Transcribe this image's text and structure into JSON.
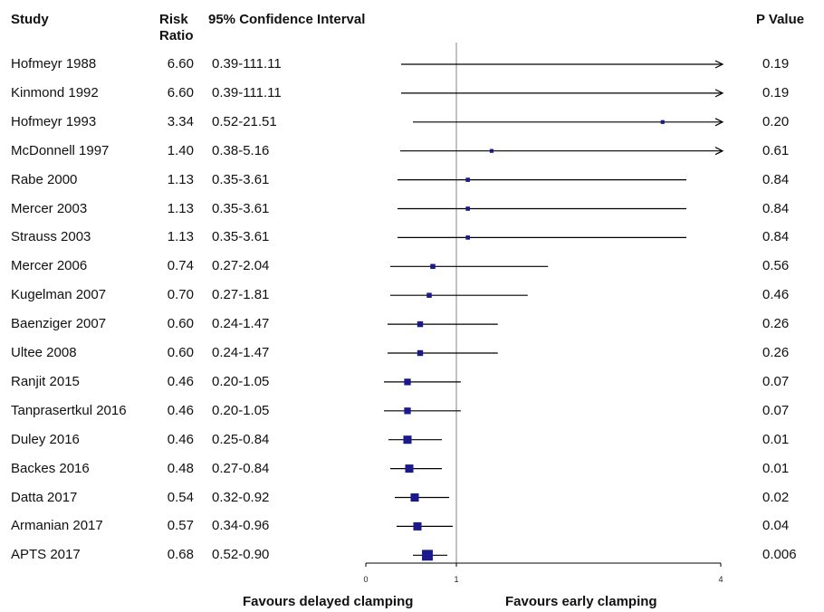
{
  "chart_data": {
    "type": "forest",
    "headers": {
      "study": "Study",
      "risk_ratio_line1": "Risk",
      "risk_ratio_line2": "Ratio",
      "ci": "95% Confidence Interval",
      "p_value": "P Value"
    },
    "rows": [
      {
        "study": "Hofmeyr 1988",
        "rr": "6.60",
        "ci": "0.39-111.11",
        "p": "0.19",
        "rr_value": 6.6,
        "lo": 0.39,
        "hi": 111.11,
        "weight": 0
      },
      {
        "study": "Kinmond 1992",
        "rr": "6.60",
        "ci": "0.39-111.11",
        "p": "0.19",
        "rr_value": 6.6,
        "lo": 0.39,
        "hi": 111.11,
        "weight": 0
      },
      {
        "study": "Hofmeyr 1993",
        "rr": "3.34",
        "ci": "0.52-21.51",
        "p": "0.20",
        "rr_value": 3.34,
        "lo": 0.52,
        "hi": 21.51,
        "weight": 1
      },
      {
        "study": "McDonnell 1997",
        "rr": "1.40",
        "ci": "0.38-5.16",
        "p": "0.61",
        "rr_value": 1.4,
        "lo": 0.38,
        "hi": 5.16,
        "weight": 1
      },
      {
        "study": "Rabe 2000",
        "rr": "1.13",
        "ci": "0.35-3.61",
        "p": "0.84",
        "rr_value": 1.13,
        "lo": 0.35,
        "hi": 3.61,
        "weight": 1.2
      },
      {
        "study": "Mercer 2003",
        "rr": "1.13",
        "ci": "0.35-3.61",
        "p": "0.84",
        "rr_value": 1.13,
        "lo": 0.35,
        "hi": 3.61,
        "weight": 1.2
      },
      {
        "study": "Strauss 2003",
        "rr": "1.13",
        "ci": "0.35-3.61",
        "p": "0.84",
        "rr_value": 1.13,
        "lo": 0.35,
        "hi": 3.61,
        "weight": 1.2
      },
      {
        "study": "Mercer 2006",
        "rr": "0.74",
        "ci": "0.27-2.04",
        "p": "0.56",
        "rr_value": 0.74,
        "lo": 0.27,
        "hi": 2.04,
        "weight": 1.6
      },
      {
        "study": "Kugelman 2007",
        "rr": "0.70",
        "ci": "0.27-1.81",
        "p": "0.46",
        "rr_value": 0.7,
        "lo": 0.27,
        "hi": 1.81,
        "weight": 1.6
      },
      {
        "study": "Baenziger 2007",
        "rr": "0.60",
        "ci": "0.24-1.47",
        "p": "0.26",
        "rr_value": 0.6,
        "lo": 0.24,
        "hi": 1.47,
        "weight": 2
      },
      {
        "study": "Ultee 2008",
        "rr": "0.60",
        "ci": "0.24-1.47",
        "p": "0.26",
        "rr_value": 0.6,
        "lo": 0.24,
        "hi": 1.47,
        "weight": 2
      },
      {
        "study": "Ranjit 2015",
        "rr": "0.46",
        "ci": "0.20-1.05",
        "p": "0.07",
        "rr_value": 0.46,
        "lo": 0.2,
        "hi": 1.05,
        "weight": 2.4
      },
      {
        "study": "Tanprasertkul 2016",
        "rr": "0.46",
        "ci": "0.20-1.05",
        "p": "0.07",
        "rr_value": 0.46,
        "lo": 0.2,
        "hi": 1.05,
        "weight": 2.4
      },
      {
        "study": "Duley 2016",
        "rr": "0.46",
        "ci": "0.25-0.84",
        "p": "0.01",
        "rr_value": 0.46,
        "lo": 0.25,
        "hi": 0.84,
        "weight": 3.2
      },
      {
        "study": "Backes 2016",
        "rr": "0.48",
        "ci": "0.27-0.84",
        "p": "0.01",
        "rr_value": 0.48,
        "lo": 0.27,
        "hi": 0.84,
        "weight": 3.2
      },
      {
        "study": "Datta 2017",
        "rr": "0.54",
        "ci": "0.32-0.92",
        "p": "0.02",
        "rr_value": 0.54,
        "lo": 0.32,
        "hi": 0.92,
        "weight": 3.2
      },
      {
        "study": "Armanian 2017",
        "rr": "0.57",
        "ci": "0.34-0.96",
        "p": "0.04",
        "rr_value": 0.57,
        "lo": 0.34,
        "hi": 0.96,
        "weight": 3.2
      },
      {
        "study": "APTS 2017",
        "rr": "0.68",
        "ci": "0.52-0.90",
        "p": "0.006",
        "rr_value": 0.68,
        "lo": 0.52,
        "hi": 0.9,
        "weight": 4.5
      }
    ],
    "x_axis": {
      "range": [
        0,
        4
      ],
      "ticks": [
        "0",
        "1",
        "4"
      ],
      "reference_line": 1
    },
    "favours_left": "Favours delayed clamping",
    "favours_right": "Favours early clamping",
    "marker_color": "#1a1a8c",
    "line_color": "#000000",
    "reference_line_color": "#999999"
  }
}
